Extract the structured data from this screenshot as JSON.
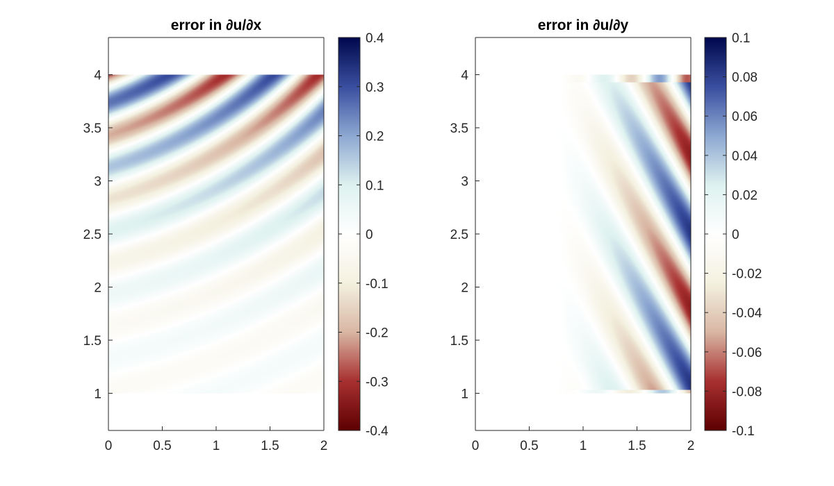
{
  "chart_data": [
    {
      "type": "heatmap",
      "title": "error in ∂u/∂x",
      "xlabel": "",
      "ylabel": "",
      "xlim": [
        0,
        2
      ],
      "ylim": [
        0.65,
        4.35
      ],
      "xticks": [
        "0",
        "0.5",
        "1",
        "1.5",
        "2"
      ],
      "yticks": [
        "1",
        "1.5",
        "2",
        "2.5",
        "3",
        "3.5",
        "4"
      ],
      "colorbar": {
        "range": [
          -0.4,
          0.4
        ],
        "ticks": [
          "0.4",
          "0.3",
          "0.2",
          "0.1",
          "0",
          "-0.1",
          "-0.2",
          "-0.3",
          "-0.4"
        ],
        "colormap": [
          "#5e0002",
          "#a83030",
          "#d9b7a4",
          "#f4f1e0",
          "#ffffff",
          "#def2f0",
          "#8ea8d2",
          "#3b4fa0",
          "#00094d"
        ]
      },
      "domain": {
        "x": [
          0,
          2
        ],
        "y": [
          1,
          4
        ]
      },
      "pattern": "wave fronts curving from the top edge; amplitude ~0.3 near y=4 decaying to ~0.02 near y=1"
    },
    {
      "type": "heatmap",
      "title": "error in ∂u/∂y",
      "xlabel": "",
      "ylabel": "",
      "xlim": [
        0,
        2
      ],
      "ylim": [
        0.65,
        4.35
      ],
      "xticks": [
        "0",
        "0.5",
        "1",
        "1.5",
        "2"
      ],
      "yticks": [
        "1",
        "1.5",
        "2",
        "2.5",
        "3",
        "3.5",
        "4"
      ],
      "colorbar": {
        "range": [
          -0.1,
          0.1
        ],
        "ticks": [
          "0.1",
          "0.08",
          "0.06",
          "0.04",
          "0.02",
          "0",
          "-0.02",
          "-0.04",
          "-0.06",
          "-0.08",
          "-0.1"
        ],
        "colormap": [
          "#5e0002",
          "#a83030",
          "#d9b7a4",
          "#f4f1e0",
          "#ffffff",
          "#def2f0",
          "#8ea8d2",
          "#3b4fa0",
          "#00094d"
        ]
      },
      "domain": {
        "x": [
          0.75,
          2
        ],
        "y": [
          1,
          4
        ]
      },
      "pattern": "diagonal bands strongest at the right edge (~0.08), fading toward x=0.75; thin boundary layers at y=1 and y=4"
    }
  ]
}
